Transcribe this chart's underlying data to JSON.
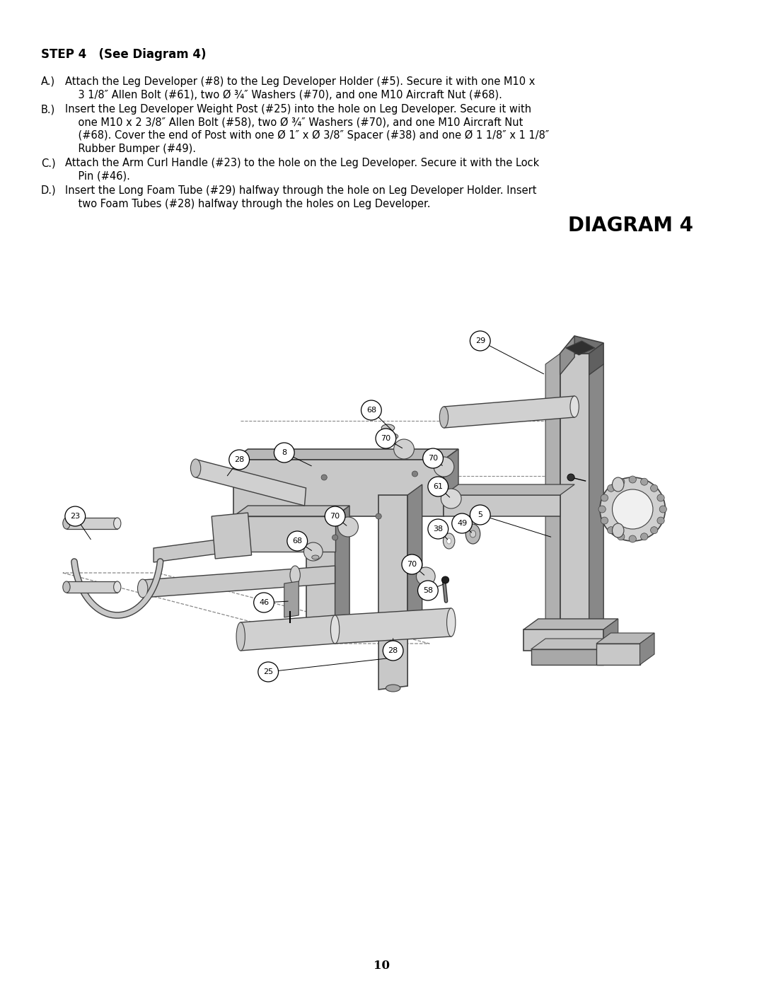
{
  "bg_color": "#ffffff",
  "text_color": "#000000",
  "page_number": "10",
  "step_title": "STEP 4   (See Diagram 4)",
  "para_A_label": "A.)",
  "para_A_line1": "Attach the Leg Developer (#8) to the Leg Developer Holder (#5). Secure it with one M10 x",
  "para_A_line2": "    3 1/8″ Allen Bolt (#61), two Ø ¾″ Washers (#70), and one M10 Aircraft Nut (#68).",
  "para_B_label": "B.)",
  "para_B_line1": "Insert the Leg Developer Weight Post (#25) into the hole on Leg Developer. Secure it with",
  "para_B_line2": "    one M10 x 2 3/8″ Allen Bolt (#58), two Ø ¾″ Washers (#70), and one M10 Aircraft Nut",
  "para_B_line3": "    (#68). Cover the end of Post with one Ø 1″ x Ø 3/8″ Spacer (#38) and one Ø 1 1/8″ x 1 1/8″",
  "para_B_line4": "    Rubber Bumper (#49).",
  "para_C_label": "C.)",
  "para_C_line1": "Attach the Arm Curl Handle (#23) to the hole on the Leg Developer. Secure it with the Lock",
  "para_C_line2": "    Pin (#46).",
  "para_D_label": "D.)",
  "para_D_line1": "Insert the Long Foam Tube (#29) halfway through the hole on Leg Developer Holder. Insert",
  "para_D_line2": "    two Foam Tubes (#28) halfway through the holes on Leg Developer.",
  "diagram_title": "DIAGRAM 4",
  "dark": "#404040",
  "mid": "#888888",
  "light": "#c8c8c8",
  "vlight": "#e0e0e0",
  "black": "#000000"
}
